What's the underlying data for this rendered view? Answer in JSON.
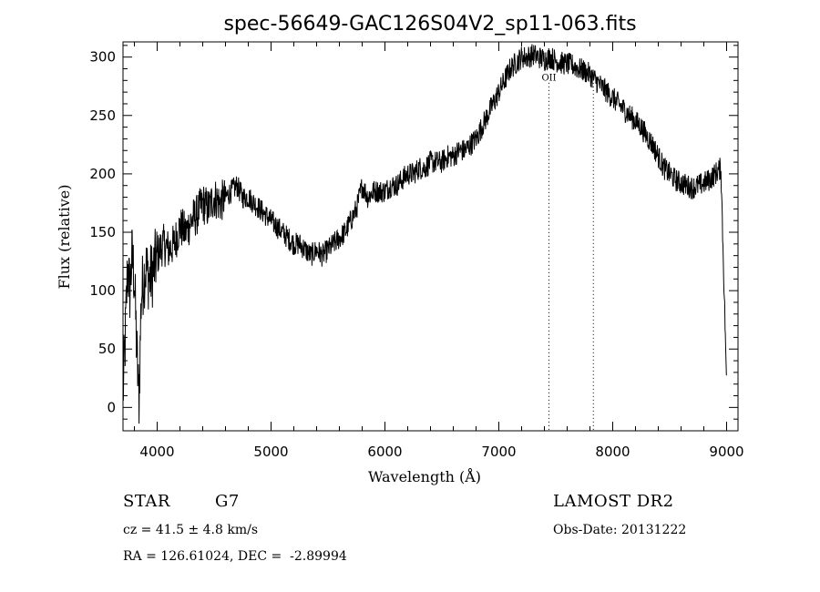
{
  "chart_data": {
    "type": "line",
    "title": "spec-56649-GAC126S04V2_sp11-063.fits",
    "xlabel": "Wavelength (Å)",
    "ylabel": "Flux (relative)",
    "xlim": [
      3700,
      9100
    ],
    "ylim": [
      -20,
      313
    ],
    "xticks": [
      4000,
      5000,
      6000,
      7000,
      8000,
      9000
    ],
    "yticks": [
      0,
      50,
      100,
      150,
      200,
      250,
      300
    ],
    "grid": false,
    "series": [
      {
        "x": [
          3700,
          3720,
          3740,
          3760,
          3780,
          3800,
          3820,
          3840,
          3860,
          3880,
          3900,
          3930,
          3960,
          4000,
          4050,
          4100,
          4150,
          4200,
          4250,
          4300,
          4350,
          4400,
          4450,
          4500,
          4550,
          4600,
          4650,
          4700,
          4750,
          4800,
          4850,
          4900,
          4950,
          5000,
          5050,
          5100,
          5150,
          5200,
          5250,
          5300,
          5350,
          5400,
          5450,
          5500,
          5550,
          5600,
          5650,
          5700,
          5750,
          5800,
          5850,
          5900,
          5950,
          6000,
          6050,
          6100,
          6150,
          6200,
          6250,
          6300,
          6350,
          6400,
          6450,
          6500,
          6550,
          6600,
          6650,
          6700,
          6750,
          6800,
          6850,
          6900,
          6950,
          7000,
          7050,
          7100,
          7150,
          7200,
          7250,
          7300,
          7350,
          7400,
          7450,
          7500,
          7550,
          7600,
          7650,
          7700,
          7750,
          7800,
          7850,
          7900,
          7950,
          8000,
          8050,
          8100,
          8150,
          8200,
          8250,
          8300,
          8350,
          8400,
          8450,
          8500,
          8550,
          8600,
          8650,
          8700,
          8750,
          8800,
          8850,
          8900,
          8950,
          9000
        ],
        "y": [
          10,
          60,
          120,
          100,
          130,
          110,
          50,
          5,
          95,
          110,
          120,
          110,
          115,
          130,
          140,
          135,
          140,
          155,
          150,
          160,
          165,
          175,
          170,
          180,
          175,
          180,
          185,
          190,
          180,
          180,
          175,
          170,
          165,
          160,
          155,
          150,
          145,
          140,
          140,
          135,
          130,
          135,
          130,
          135,
          140,
          145,
          150,
          160,
          170,
          190,
          180,
          185,
          185,
          185,
          190,
          190,
          195,
          200,
          200,
          205,
          205,
          210,
          210,
          210,
          215,
          215,
          220,
          220,
          225,
          230,
          240,
          250,
          260,
          270,
          280,
          290,
          295,
          300,
          300,
          302,
          300,
          298,
          300,
          297,
          295,
          294,
          293,
          290,
          288,
          285,
          280,
          275,
          270,
          265,
          260,
          255,
          250,
          245,
          240,
          232,
          225,
          215,
          205,
          200,
          195,
          192,
          190,
          188,
          190,
          192,
          195,
          200,
          205,
          20
        ]
      }
    ],
    "line_annotations": [
      {
        "x": 7440,
        "label": "OII"
      },
      {
        "x": 7830,
        "label": ""
      }
    ]
  },
  "info": {
    "object_class": "STAR",
    "subclass": "G7",
    "survey": "LAMOST DR2",
    "redshift": "cz = 41.5 ± 4.8 km/s",
    "obs_date": "Obs-Date: 20131222",
    "coords": "RA = 126.61024, DEC =  -2.89994"
  },
  "colors": {
    "line": "#000000",
    "axes": "#000000",
    "background": "#ffffff"
  }
}
